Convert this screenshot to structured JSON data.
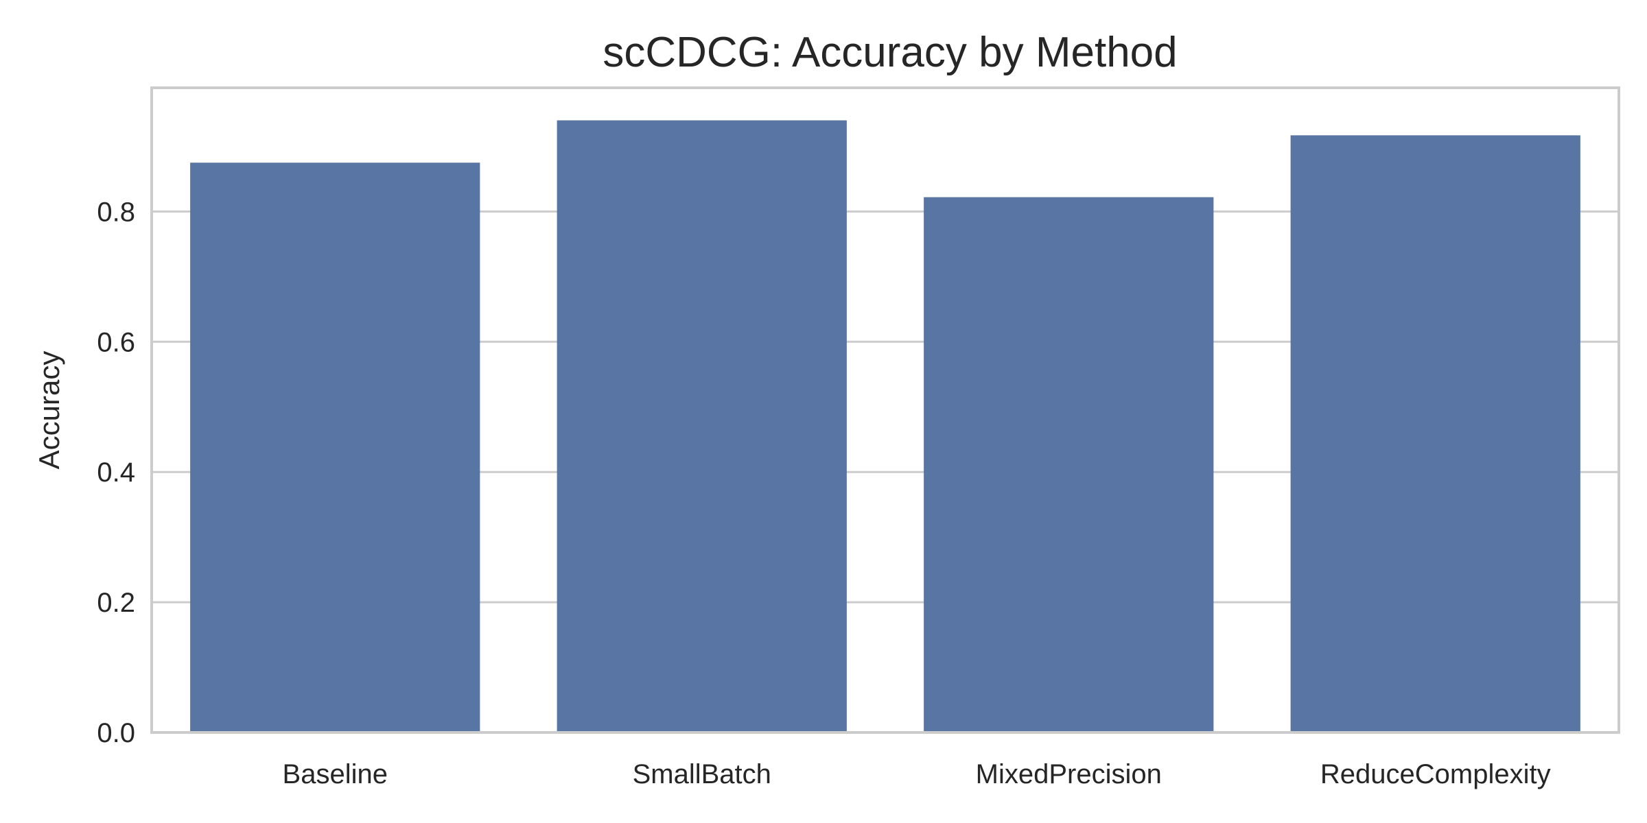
{
  "chart_data": {
    "type": "bar",
    "title": "scCDCG: Accuracy by Method",
    "xlabel": "",
    "ylabel": "Accuracy",
    "categories": [
      "Baseline",
      "SmallBatch",
      "MixedPrecision",
      "ReduceComplexity"
    ],
    "values": [
      0.875,
      0.94,
      0.822,
      0.917
    ],
    "ylim": [
      0,
      0.99
    ],
    "yticks": [
      0.0,
      0.2,
      0.4,
      0.6,
      0.8
    ],
    "ytick_labels": [
      "0.0",
      "0.2",
      "0.4",
      "0.6",
      "0.8"
    ],
    "grid": "horizontal",
    "bar_color": "#5975a4",
    "grid_color": "#cccccc",
    "frame_color": "#cccccc"
  }
}
